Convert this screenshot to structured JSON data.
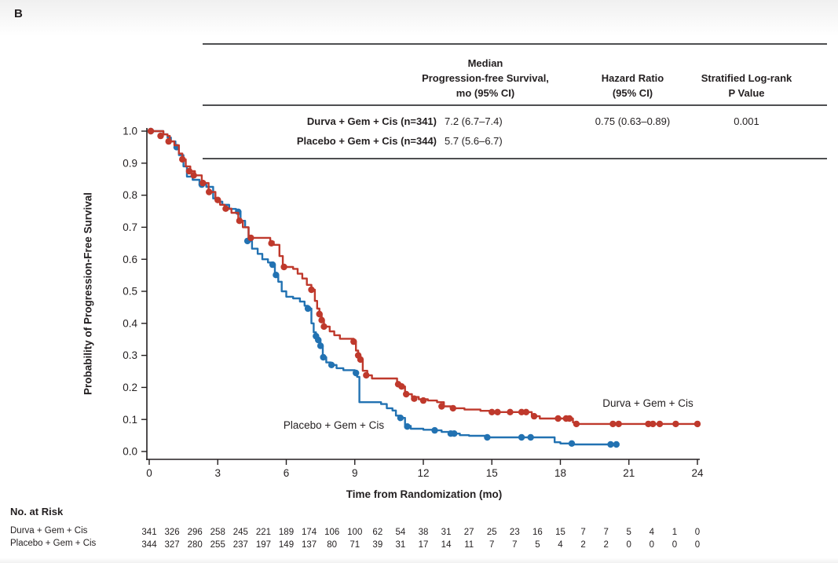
{
  "figure": {
    "panel_label": "B",
    "table": {
      "columns": {
        "pfs": [
          "Median",
          "Progression-free Survival,",
          "mo (95% CI)"
        ],
        "hr": [
          "Hazard Ratio",
          "(95% CI)"
        ],
        "logrank": [
          "Stratified Log-rank",
          "P Value"
        ]
      },
      "rows": [
        {
          "label": "Durva + Gem + Cis (n=341)",
          "pfs": "7.2 (6.7–7.4)",
          "hr": "0.75 (0.63–0.89)",
          "p": "0.001"
        },
        {
          "label": "Placebo + Gem + Cis (n=344)",
          "pfs": "5.7 (5.6–6.7)",
          "hr": "",
          "p": ""
        }
      ]
    }
  },
  "colors": {
    "durva": "#bf392c",
    "placebo": "#2272b2",
    "axis": "#231f20",
    "rule": "#4e4f51"
  },
  "chart_data": {
    "type": "line",
    "subtype": "kaplan-meier-step",
    "title": "",
    "xlabel": "Time from Randomization (mo)",
    "ylabel": "Probability of Progression-Free Survival",
    "xlim": [
      0,
      24
    ],
    "ylim": [
      0.0,
      1.0
    ],
    "xticks": [
      0,
      3,
      6,
      9,
      12,
      15,
      18,
      21,
      24
    ],
    "yticks": [
      0.0,
      0.1,
      0.2,
      0.3,
      0.4,
      0.5,
      0.6,
      0.7,
      0.8,
      0.9,
      1.0
    ],
    "grid": false,
    "legend_position": "inline-curve-labels",
    "series": [
      {
        "name": "Durva + Gem + Cis",
        "color": "#bf392c",
        "median_pfs": "7.2 (6.7–7.4)",
        "steps": [
          [
            0,
            1.0
          ],
          [
            0.55,
            1.0
          ],
          [
            0.62,
            0.99
          ],
          [
            0.8,
            0.985
          ],
          [
            0.9,
            0.968
          ],
          [
            1.1,
            0.956
          ],
          [
            1.3,
            0.93
          ],
          [
            1.45,
            0.912
          ],
          [
            1.6,
            0.89
          ],
          [
            1.8,
            0.875
          ],
          [
            2.0,
            0.862
          ],
          [
            2.3,
            0.838
          ],
          [
            2.6,
            0.81
          ],
          [
            2.9,
            0.785
          ],
          [
            3.1,
            0.77
          ],
          [
            3.3,
            0.758
          ],
          [
            3.6,
            0.745
          ],
          [
            3.9,
            0.72
          ],
          [
            4.1,
            0.7
          ],
          [
            4.35,
            0.667
          ],
          [
            5.3,
            0.655
          ],
          [
            5.45,
            0.645
          ],
          [
            5.7,
            0.61
          ],
          [
            5.85,
            0.576
          ],
          [
            6.3,
            0.57
          ],
          [
            6.5,
            0.555
          ],
          [
            6.7,
            0.54
          ],
          [
            6.9,
            0.52
          ],
          [
            7.1,
            0.505
          ],
          [
            7.25,
            0.47
          ],
          [
            7.35,
            0.446
          ],
          [
            7.45,
            0.429
          ],
          [
            7.55,
            0.41
          ],
          [
            7.65,
            0.39
          ],
          [
            7.9,
            0.375
          ],
          [
            8.1,
            0.363
          ],
          [
            8.35,
            0.352
          ],
          [
            8.95,
            0.343
          ],
          [
            9.05,
            0.315
          ],
          [
            9.15,
            0.3
          ],
          [
            9.25,
            0.287
          ],
          [
            9.35,
            0.252
          ],
          [
            9.55,
            0.238
          ],
          [
            9.75,
            0.228
          ],
          [
            10.85,
            0.21
          ],
          [
            11.05,
            0.203
          ],
          [
            11.2,
            0.179
          ],
          [
            11.5,
            0.17
          ],
          [
            11.8,
            0.163
          ],
          [
            12.2,
            0.159
          ],
          [
            12.6,
            0.154
          ],
          [
            12.9,
            0.141
          ],
          [
            13.2,
            0.135
          ],
          [
            13.8,
            0.131
          ],
          [
            14.5,
            0.127
          ],
          [
            15.0,
            0.123
          ],
          [
            16.75,
            0.11
          ],
          [
            17.1,
            0.103
          ],
          [
            18.55,
            0.091
          ],
          [
            18.7,
            0.086
          ],
          [
            24,
            0.086
          ]
        ],
        "censors": [
          [
            0.07,
            1.0
          ],
          [
            0.5,
            0.985
          ],
          [
            0.85,
            0.968
          ],
          [
            1.45,
            0.912
          ],
          [
            1.75,
            0.875
          ],
          [
            1.95,
            0.862
          ],
          [
            2.35,
            0.838
          ],
          [
            2.62,
            0.81
          ],
          [
            3.0,
            0.785
          ],
          [
            3.35,
            0.758
          ],
          [
            3.95,
            0.72
          ],
          [
            4.45,
            0.667
          ],
          [
            5.35,
            0.65
          ],
          [
            5.9,
            0.576
          ],
          [
            7.1,
            0.505
          ],
          [
            7.45,
            0.429
          ],
          [
            7.55,
            0.41
          ],
          [
            7.65,
            0.39
          ],
          [
            8.95,
            0.343
          ],
          [
            9.15,
            0.3
          ],
          [
            9.25,
            0.287
          ],
          [
            9.5,
            0.238
          ],
          [
            10.9,
            0.21
          ],
          [
            11.05,
            0.203
          ],
          [
            11.25,
            0.179
          ],
          [
            11.6,
            0.165
          ],
          [
            12.0,
            0.159
          ],
          [
            12.8,
            0.141
          ],
          [
            13.3,
            0.135
          ],
          [
            15.0,
            0.123
          ],
          [
            15.25,
            0.123
          ],
          [
            15.8,
            0.123
          ],
          [
            16.3,
            0.123
          ],
          [
            16.5,
            0.123
          ],
          [
            16.85,
            0.11
          ],
          [
            17.9,
            0.103
          ],
          [
            18.25,
            0.103
          ],
          [
            18.4,
            0.103
          ],
          [
            18.7,
            0.086
          ],
          [
            20.3,
            0.086
          ],
          [
            20.55,
            0.086
          ],
          [
            21.85,
            0.086
          ],
          [
            22.05,
            0.086
          ],
          [
            22.35,
            0.086
          ],
          [
            23.05,
            0.086
          ],
          [
            24.0,
            0.086
          ]
        ]
      },
      {
        "name": "Placebo + Gem + Cis",
        "color": "#2272b2",
        "median_pfs": "5.7 (5.6–6.7)",
        "steps": [
          [
            0,
            1.0
          ],
          [
            0.55,
            1.0
          ],
          [
            0.62,
            0.99
          ],
          [
            0.8,
            0.98
          ],
          [
            0.95,
            0.968
          ],
          [
            1.15,
            0.95
          ],
          [
            1.3,
            0.925
          ],
          [
            1.5,
            0.89
          ],
          [
            1.65,
            0.858
          ],
          [
            1.9,
            0.848
          ],
          [
            2.2,
            0.833
          ],
          [
            2.5,
            0.826
          ],
          [
            2.8,
            0.79
          ],
          [
            3.0,
            0.78
          ],
          [
            3.2,
            0.77
          ],
          [
            3.5,
            0.757
          ],
          [
            3.8,
            0.748
          ],
          [
            4.0,
            0.72
          ],
          [
            4.2,
            0.7
          ],
          [
            4.35,
            0.657
          ],
          [
            4.5,
            0.633
          ],
          [
            4.75,
            0.617
          ],
          [
            4.95,
            0.6
          ],
          [
            5.2,
            0.59
          ],
          [
            5.35,
            0.583
          ],
          [
            5.5,
            0.551
          ],
          [
            5.65,
            0.53
          ],
          [
            5.8,
            0.5
          ],
          [
            6.0,
            0.483
          ],
          [
            6.3,
            0.478
          ],
          [
            6.6,
            0.468
          ],
          [
            6.8,
            0.455
          ],
          [
            6.95,
            0.446
          ],
          [
            7.1,
            0.4
          ],
          [
            7.2,
            0.372
          ],
          [
            7.3,
            0.36
          ],
          [
            7.4,
            0.348
          ],
          [
            7.5,
            0.33
          ],
          [
            7.6,
            0.294
          ],
          [
            7.75,
            0.278
          ],
          [
            7.95,
            0.27
          ],
          [
            8.2,
            0.26
          ],
          [
            8.5,
            0.254
          ],
          [
            9.0,
            0.245
          ],
          [
            9.1,
            0.233
          ],
          [
            9.2,
            0.154
          ],
          [
            10.15,
            0.148
          ],
          [
            10.4,
            0.135
          ],
          [
            10.65,
            0.128
          ],
          [
            10.8,
            0.112
          ],
          [
            11.0,
            0.105
          ],
          [
            11.2,
            0.08
          ],
          [
            11.45,
            0.071
          ],
          [
            12.0,
            0.068
          ],
          [
            12.5,
            0.066
          ],
          [
            12.8,
            0.061
          ],
          [
            13.2,
            0.056
          ],
          [
            13.6,
            0.051
          ],
          [
            14.0,
            0.049
          ],
          [
            14.8,
            0.044
          ],
          [
            17.75,
            0.029
          ],
          [
            18.0,
            0.025
          ],
          [
            18.6,
            0.022
          ],
          [
            20.5,
            0.022
          ]
        ],
        "censors": [
          [
            0.07,
            1.0
          ],
          [
            1.2,
            0.95
          ],
          [
            2.3,
            0.833
          ],
          [
            3.9,
            0.748
          ],
          [
            4.3,
            0.657
          ],
          [
            5.4,
            0.583
          ],
          [
            5.55,
            0.551
          ],
          [
            6.95,
            0.446
          ],
          [
            7.3,
            0.36
          ],
          [
            7.4,
            0.348
          ],
          [
            7.5,
            0.33
          ],
          [
            7.62,
            0.294
          ],
          [
            7.98,
            0.27
          ],
          [
            9.05,
            0.245
          ],
          [
            11.0,
            0.105
          ],
          [
            11.3,
            0.078
          ],
          [
            12.5,
            0.066
          ],
          [
            13.2,
            0.056
          ],
          [
            13.35,
            0.056
          ],
          [
            14.8,
            0.044
          ],
          [
            16.3,
            0.044
          ],
          [
            16.7,
            0.044
          ],
          [
            18.5,
            0.025
          ],
          [
            20.2,
            0.022
          ],
          [
            20.45,
            0.022
          ]
        ]
      }
    ],
    "risk_table": {
      "title": "No. at Risk",
      "months": [
        0,
        1,
        2,
        3,
        4,
        5,
        6,
        7,
        8,
        9,
        10,
        11,
        12,
        13,
        14,
        15,
        16,
        17,
        18,
        19,
        20,
        21,
        22,
        23,
        24
      ],
      "rows": [
        {
          "label": "Durva + Gem + Cis",
          "counts": [
            341,
            326,
            296,
            258,
            245,
            221,
            189,
            174,
            106,
            100,
            62,
            54,
            38,
            31,
            27,
            25,
            23,
            16,
            15,
            7,
            7,
            5,
            4,
            1,
            0
          ]
        },
        {
          "label": "Placebo + Gem + Cis",
          "counts": [
            344,
            327,
            280,
            255,
            237,
            197,
            149,
            137,
            80,
            71,
            39,
            31,
            17,
            14,
            11,
            7,
            7,
            5,
            4,
            2,
            2,
            0,
            0,
            0,
            0
          ]
        }
      ]
    }
  }
}
